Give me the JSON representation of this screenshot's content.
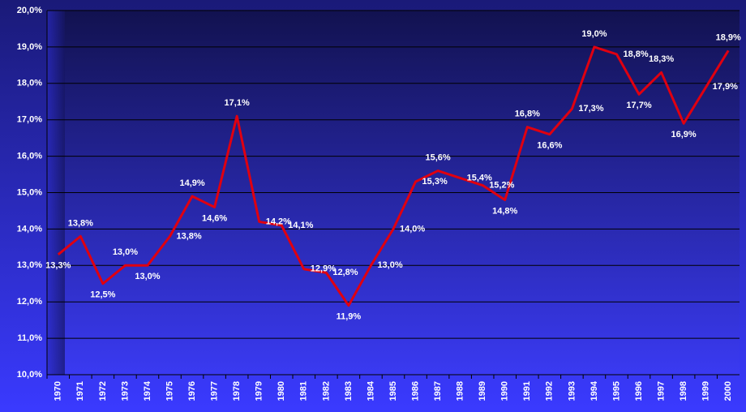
{
  "chart_data": {
    "type": "line",
    "categories": [
      "1970",
      "1971",
      "1972",
      "1973",
      "1974",
      "1975",
      "1976",
      "1977",
      "1978",
      "1979",
      "1980",
      "1981",
      "1982",
      "1983",
      "1984",
      "1985",
      "1986",
      "1987",
      "1988",
      "1989",
      "1990",
      "1991",
      "1992",
      "1993",
      "1994",
      "1995",
      "1996",
      "1997",
      "1998",
      "1999",
      "2000"
    ],
    "values": [
      13.3,
      13.8,
      12.5,
      13.0,
      13.0,
      13.8,
      14.9,
      14.6,
      17.1,
      14.2,
      14.1,
      12.9,
      12.8,
      11.9,
      13.0,
      14.0,
      15.3,
      15.6,
      15.4,
      15.2,
      14.8,
      16.8,
      16.6,
      17.3,
      19.0,
      18.8,
      17.7,
      18.3,
      16.9,
      17.9,
      18.9
    ],
    "value_labels": [
      "13,3%",
      "13,8%",
      "12,5%",
      "13,0%",
      "13,0%",
      "13,8%",
      "14,9%",
      "14,6%",
      "17,1%",
      "14,2%",
      "14,1%",
      "12,9%",
      "12,8%",
      "11,9%",
      "13,0%",
      "14,0%",
      "15,3%",
      "15,6%",
      "15,4%",
      "15,2%",
      "14,8%",
      "16,8%",
      "16,6%",
      "17,3%",
      "19,0%",
      "18,8%",
      "17,7%",
      "18,3%",
      "16,9%",
      "17,9%",
      "18,9%"
    ],
    "color": "#e00010",
    "ylim": [
      10,
      20
    ],
    "yticks": [
      {
        "value": 10,
        "label": "10,0%"
      },
      {
        "value": 11,
        "label": "11,0%"
      },
      {
        "value": 12,
        "label": "12,0%"
      },
      {
        "value": 13,
        "label": "13,0%"
      },
      {
        "value": 14,
        "label": "14,0%"
      },
      {
        "value": 15,
        "label": "15,0%"
      },
      {
        "value": 16,
        "label": "16,0%"
      },
      {
        "value": 17,
        "label": "17,0%"
      },
      {
        "value": 18,
        "label": "18,0%"
      },
      {
        "value": 19,
        "label": "19,0%"
      },
      {
        "value": 20,
        "label": "20,0%"
      }
    ],
    "grid": true
  }
}
